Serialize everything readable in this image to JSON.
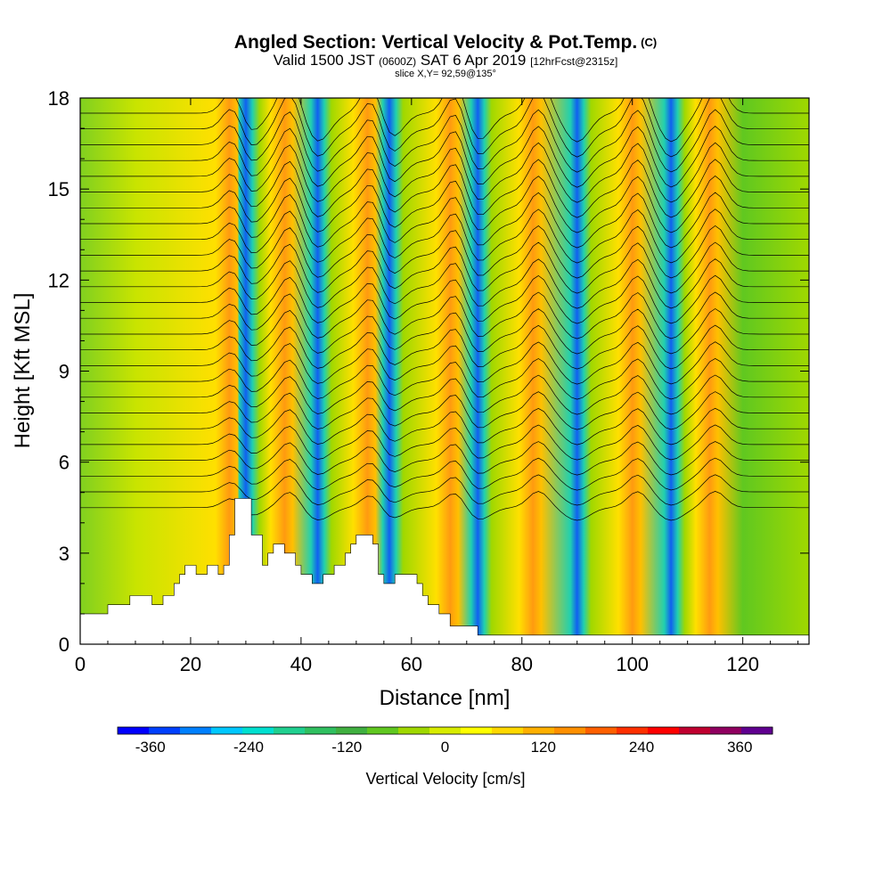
{
  "title": "Angled Section: Vertical Velocity & Pot.Temp.",
  "title_unit": "(C)",
  "subtitle_main": "Valid 1500 JST",
  "subtitle_utc": "(0600Z)",
  "subtitle_date": "SAT 6 Apr 2019",
  "subtitle_fcst": "[12hrFcst@2315z]",
  "slice": "slice X,Y= 92,59@135°",
  "chart_data": {
    "type": "heatmap",
    "xlabel": "Distance [nm]",
    "ylabel": "Height [Kft MSL]",
    "xlim": [
      0,
      132
    ],
    "ylim": [
      0,
      18
    ],
    "x_ticks": [
      0,
      20,
      40,
      60,
      80,
      100,
      120
    ],
    "y_ticks": [
      0,
      3,
      6,
      9,
      12,
      15,
      18
    ],
    "grid": false,
    "colorbar": {
      "label": "Vertical Velocity [cm/s]",
      "ticks": [
        -360,
        -240,
        -120,
        0,
        120,
        240,
        360
      ],
      "range": [
        -400,
        400
      ],
      "colors": [
        "#0000ff",
        "#0040ff",
        "#0080ff",
        "#00c8ff",
        "#00e0d0",
        "#20d090",
        "#30c060",
        "#40b040",
        "#60c820",
        "#a0d800",
        "#d8ec00",
        "#ffff00",
        "#ffd800",
        "#ffb000",
        "#ff9000",
        "#ff6000",
        "#ff3000",
        "#ff0000",
        "#c00030",
        "#900060",
        "#600090"
      ]
    },
    "updrafts_nm": [
      27,
      37,
      52,
      67,
      82,
      100,
      114
    ],
    "downdrafts_nm": [
      30,
      43,
      56,
      72,
      90,
      107
    ],
    "terrain_kft": [
      [
        0,
        1.0
      ],
      [
        5,
        1.0
      ],
      [
        5,
        1.3
      ],
      [
        9,
        1.3
      ],
      [
        9,
        1.6
      ],
      [
        13,
        1.6
      ],
      [
        13,
        1.3
      ],
      [
        15,
        1.3
      ],
      [
        15,
        1.6
      ],
      [
        17,
        1.6
      ],
      [
        17,
        2.0
      ],
      [
        18,
        2.0
      ],
      [
        18,
        2.3
      ],
      [
        19,
        2.3
      ],
      [
        19,
        2.6
      ],
      [
        21,
        2.6
      ],
      [
        21,
        2.3
      ],
      [
        23,
        2.3
      ],
      [
        23,
        2.6
      ],
      [
        25,
        2.6
      ],
      [
        25,
        2.3
      ],
      [
        26,
        2.3
      ],
      [
        26,
        2.6
      ],
      [
        27,
        2.6
      ],
      [
        27,
        3.6
      ],
      [
        28,
        3.6
      ],
      [
        28,
        4.8
      ],
      [
        31,
        4.8
      ],
      [
        31,
        3.6
      ],
      [
        33,
        3.6
      ],
      [
        33,
        2.6
      ],
      [
        34,
        2.6
      ],
      [
        34,
        3.0
      ],
      [
        35,
        3.0
      ],
      [
        35,
        3.3
      ],
      [
        37,
        3.3
      ],
      [
        37,
        3.0
      ],
      [
        39,
        3.0
      ],
      [
        39,
        2.6
      ],
      [
        40,
        2.6
      ],
      [
        40,
        2.3
      ],
      [
        42,
        2.3
      ],
      [
        42,
        2.0
      ],
      [
        44,
        2.0
      ],
      [
        44,
        2.3
      ],
      [
        46,
        2.3
      ],
      [
        46,
        2.6
      ],
      [
        48,
        2.6
      ],
      [
        48,
        3.0
      ],
      [
        49,
        3.0
      ],
      [
        49,
        3.3
      ],
      [
        50,
        3.3
      ],
      [
        50,
        3.6
      ],
      [
        53,
        3.6
      ],
      [
        53,
        3.3
      ],
      [
        54,
        3.3
      ],
      [
        54,
        2.3
      ],
      [
        55,
        2.3
      ],
      [
        55,
        2.0
      ],
      [
        57,
        2.0
      ],
      [
        57,
        2.3
      ],
      [
        61,
        2.3
      ],
      [
        61,
        2.0
      ],
      [
        62,
        2.0
      ],
      [
        62,
        1.6
      ],
      [
        63,
        1.6
      ],
      [
        63,
        1.3
      ],
      [
        65,
        1.3
      ],
      [
        65,
        1.0
      ],
      [
        67,
        1.0
      ],
      [
        67,
        0.6
      ],
      [
        72,
        0.6
      ],
      [
        72,
        0.3
      ],
      [
        132,
        0.3
      ]
    ]
  }
}
